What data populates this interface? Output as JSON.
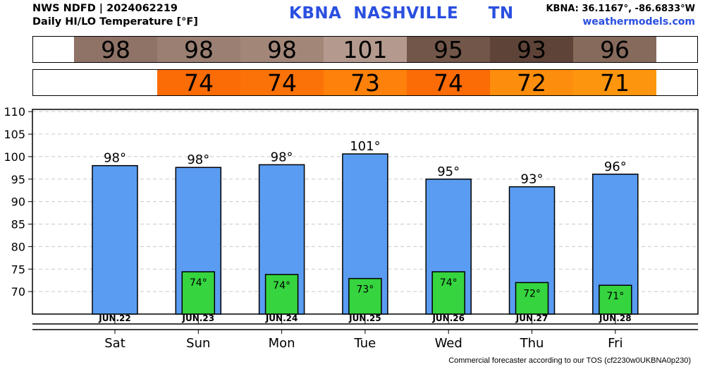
{
  "header": {
    "line1": "NWS NDFD | 2024062219",
    "line2": "Daily HI/LO Temperature [°F]",
    "station": "KBNA  NASHVILLE     TN",
    "coords": "KBNA: 36.1167°, -86.6833°W",
    "site": "weathermodels.com"
  },
  "strips": {
    "hi": [
      {
        "text": "98",
        "bg": "#8f7366"
      },
      {
        "text": "98",
        "bg": "#9a7f72"
      },
      {
        "text": "98",
        "bg": "#a28779"
      },
      {
        "text": "101",
        "bg": "#b49a8e"
      },
      {
        "text": "95",
        "bg": "#725649"
      },
      {
        "text": "93",
        "bg": "#5e4438"
      },
      {
        "text": "96",
        "bg": "#866a5c"
      }
    ],
    "lo": [
      {
        "text": "74",
        "bg": "#fb6b06"
      },
      {
        "text": "74",
        "bg": "#fb7208"
      },
      {
        "text": "73",
        "bg": "#fd810a"
      },
      {
        "text": "74",
        "bg": "#fb6b06"
      },
      {
        "text": "72",
        "bg": "#fd8d0c"
      },
      {
        "text": "71",
        "bg": "#fd960e"
      }
    ]
  },
  "chart_data": {
    "type": "bar",
    "title": "Daily HI/LO Temperature [°F]",
    "categories": [
      "Sat",
      "Sun",
      "Mon",
      "Tue",
      "Wed",
      "Thu",
      "Fri"
    ],
    "dates": [
      "JUN.22",
      "JUN.23",
      "JUN.24",
      "JUN.25",
      "JUN.26",
      "JUN.27",
      "JUN.28"
    ],
    "series": [
      {
        "values": [
          98,
          97.6,
          98.2,
          100.6,
          95,
          93.3,
          96.1
        ],
        "labels": [
          "98°",
          "98°",
          "98°",
          "101°",
          "95°",
          "93°",
          "96°"
        ],
        "color": "#5a9cf2"
      },
      {
        "values": [
          null,
          74.4,
          73.8,
          72.9,
          74.4,
          72,
          71.4
        ],
        "labels": [
          "",
          "74°",
          "74°",
          "73°",
          "74°",
          "72°",
          "71°"
        ],
        "color": "#36d43f"
      }
    ],
    "yticks": [
      70,
      75,
      80,
      85,
      90,
      95,
      100,
      105,
      110
    ],
    "ylim": [
      65,
      110.5
    ],
    "grid": true
  },
  "footer": "Commercial forecaster according to our TOS (cf2230w0UKBNA0p230)"
}
